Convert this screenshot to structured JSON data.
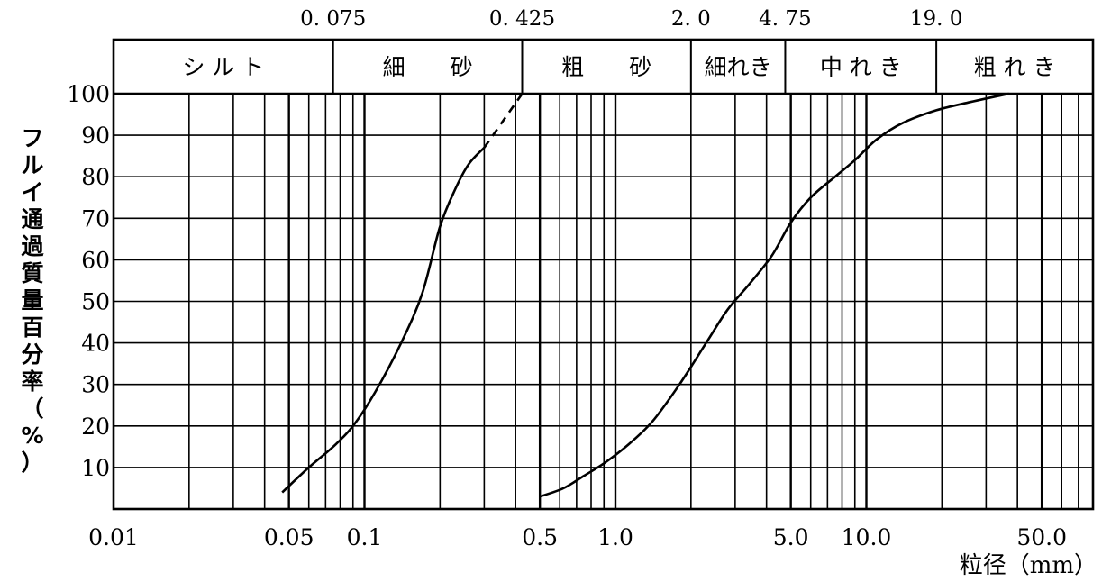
{
  "chart_data": {
    "type": "line",
    "xscale": "log",
    "xlim": [
      0.01,
      80
    ],
    "ylim": [
      0,
      100
    ],
    "grid": true,
    "ylabel": "フルイ通過質量百分率（%）",
    "xlabel": "粒径（mm）",
    "y_ticks": [
      10,
      20,
      30,
      40,
      50,
      60,
      70,
      80,
      90,
      100
    ],
    "x_tick_labels": [
      {
        "value": 0.01,
        "label": "0.01"
      },
      {
        "value": 0.05,
        "label": "0.05"
      },
      {
        "value": 0.1,
        "label": "0.1"
      },
      {
        "value": 0.5,
        "label": "0.5"
      },
      {
        "value": 1.0,
        "label": "1.0"
      },
      {
        "value": 5.0,
        "label": "5.0"
      },
      {
        "value": 10.0,
        "label": "10.0"
      },
      {
        "value": 50.0,
        "label": "50.0"
      }
    ],
    "boundary_labels": [
      {
        "value": 0.075,
        "label": "0. 075"
      },
      {
        "value": 0.425,
        "label": "0. 425"
      },
      {
        "value": 2.0,
        "label": "2. 0"
      },
      {
        "value": 4.75,
        "label": "4. 75"
      },
      {
        "value": 19.0,
        "label": "19. 0"
      }
    ],
    "soil_classes": [
      {
        "from": 0.01,
        "to": 0.075,
        "label": "シ ル ト"
      },
      {
        "from": 0.075,
        "to": 0.425,
        "label": "細　　砂"
      },
      {
        "from": 0.425,
        "to": 2.0,
        "label": "粗　　砂"
      },
      {
        "from": 2.0,
        "to": 4.75,
        "label": "細れき"
      },
      {
        "from": 4.75,
        "to": 19.0,
        "label": "中 れ き"
      },
      {
        "from": 19.0,
        "to": 80,
        "label": "粗 れ き"
      }
    ],
    "series": [
      {
        "dashed_tail": {
          "x": [
            0.3,
            0.425
          ],
          "y": [
            87,
            100
          ]
        },
        "x": [
          0.047,
          0.06,
          0.075,
          0.09,
          0.11,
          0.14,
          0.17,
          0.2,
          0.23,
          0.26,
          0.3
        ],
        "y": [
          4,
          10,
          15,
          20,
          28,
          40,
          52,
          68,
          77,
          83,
          87
        ]
      },
      {
        "x": [
          0.5,
          0.62,
          0.75,
          0.9,
          1.1,
          1.4,
          1.8,
          2.3,
          2.8,
          3.4,
          4.2,
          5.0,
          6.0,
          7.5,
          9.0,
          11.0,
          14.0,
          19.0,
          26.0,
          37.0
        ],
        "y": [
          3,
          5,
          8,
          11,
          15,
          21,
          30,
          40,
          48,
          54,
          61,
          69,
          75,
          80,
          84,
          89,
          93,
          96,
          98,
          100
        ]
      }
    ]
  }
}
